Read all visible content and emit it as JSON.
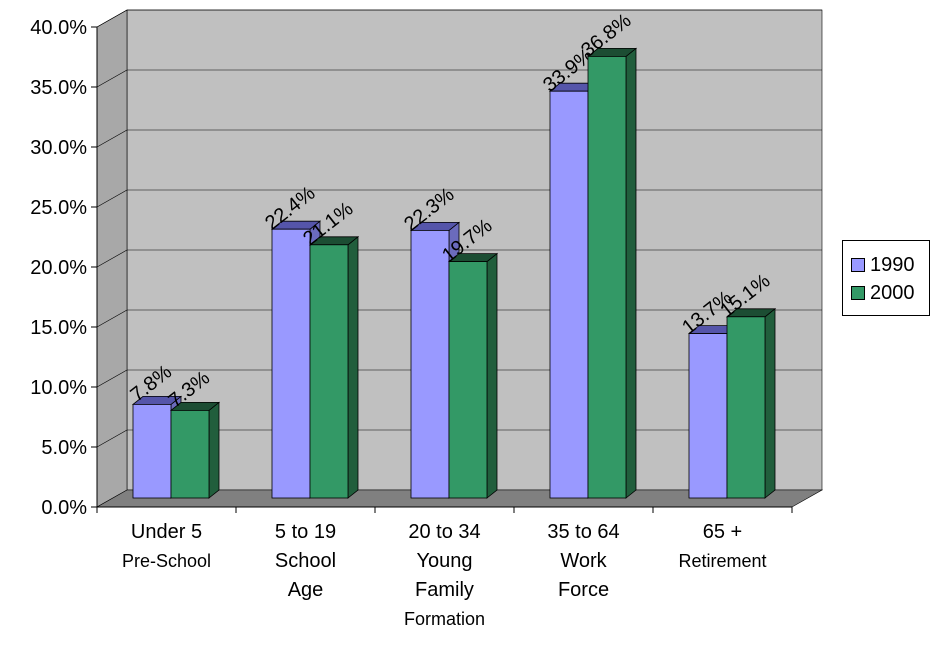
{
  "chart_data": {
    "type": "bar",
    "categories": [
      [
        "Under 5",
        "Pre-School"
      ],
      [
        "5 to 19",
        "School",
        "Age"
      ],
      [
        "20 to 34",
        "Young",
        "Family",
        "Formation"
      ],
      [
        "35 to 64",
        "Work",
        "Force"
      ],
      [
        "65 +",
        "Retirement"
      ]
    ],
    "series": [
      {
        "name": "1990",
        "values": [
          7.8,
          22.4,
          22.3,
          33.9,
          13.7
        ],
        "labels": [
          "7.8%",
          "22.4%",
          "22.3%",
          "33.9%",
          "13.7%"
        ]
      },
      {
        "name": "2000",
        "values": [
          7.3,
          21.1,
          19.7,
          36.8,
          15.1
        ],
        "labels": [
          "7.3%",
          "21.1%",
          "19.7%",
          "36.8%",
          "15.1%"
        ]
      }
    ],
    "yticks": [
      "0.0%",
      "5.0%",
      "10.0%",
      "15.0%",
      "20.0%",
      "25.0%",
      "30.0%",
      "35.0%",
      "40.0%"
    ],
    "ylim": [
      0,
      40
    ],
    "grid": true,
    "legend_position": "right",
    "colors": {
      "series_1990": "#9999ff",
      "series_2000": "#339966",
      "plot_wall": "#c0c0c0",
      "plot_floor": "#808080"
    }
  }
}
